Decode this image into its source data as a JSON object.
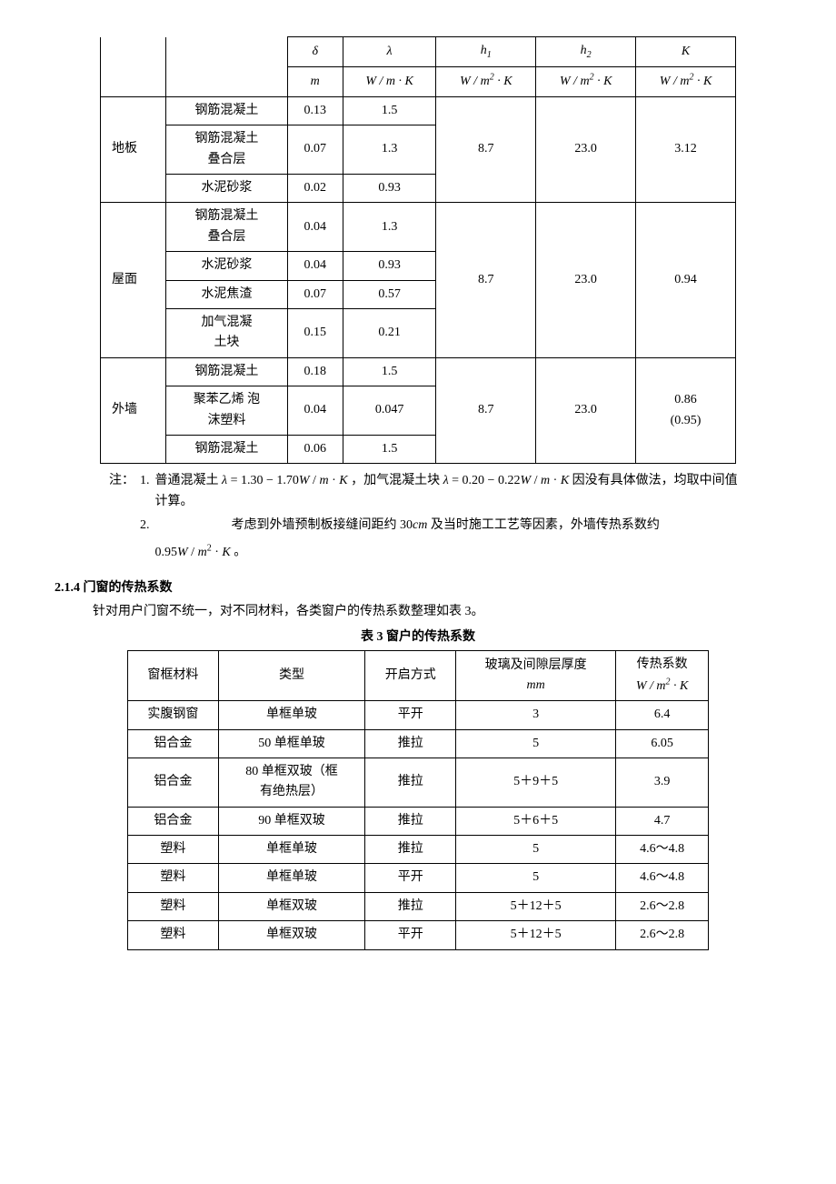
{
  "table1": {
    "head_symbols": [
      "δ",
      "λ",
      "h₁",
      "h₂",
      "K"
    ],
    "head_units": [
      "m",
      "W / m · K",
      "W / m² · K",
      "W / m² · K",
      "W / m² · K"
    ],
    "groups": [
      {
        "name": "地板",
        "rows": [
          {
            "mat": "钢筋混凝土",
            "d": "0.13",
            "l": "1.5"
          },
          {
            "mat": "钢筋混凝土\n叠合层",
            "d": "0.07",
            "l": "1.3"
          },
          {
            "mat": "水泥砂浆",
            "d": "0.02",
            "l": "0.93"
          }
        ],
        "h1": "8.7",
        "h2": "23.0",
        "K": "3.12"
      },
      {
        "name": "屋面",
        "rows": [
          {
            "mat": "钢筋混凝土\n叠合层",
            "d": "0.04",
            "l": "1.3"
          },
          {
            "mat": "水泥砂浆",
            "d": "0.04",
            "l": "0.93"
          },
          {
            "mat": "水泥焦渣",
            "d": "0.07",
            "l": "0.57"
          },
          {
            "mat": "加气混凝\n土块",
            "d": "0.15",
            "l": "0.21"
          }
        ],
        "h1": "8.7",
        "h2": "23.0",
        "K": "0.94"
      },
      {
        "name": "外墙",
        "rows": [
          {
            "mat": "钢筋混凝土",
            "d": "0.18",
            "l": "1.5"
          },
          {
            "mat": "聚苯乙烯 泡\n沫塑料",
            "d": "0.04",
            "l": "0.047"
          },
          {
            "mat": "钢筋混凝土",
            "d": "0.06",
            "l": "1.5"
          }
        ],
        "h1": "8.7",
        "h2": "23.0",
        "K": "0.86\n(0.95)"
      }
    ]
  },
  "notes": {
    "label": "注：",
    "n1_num": "1.",
    "n1_a": "普通混凝土 ",
    "n1_formula1": "λ = 1.30 − 1.70W / m · K",
    "n1_b": " ，加气混凝土块 ",
    "n1_formula2": "λ = 0.20 − 0.22W / m · K",
    "n1_c": " 因没有具体做法，均取中间值计算。",
    "n2_num": "2.",
    "n2_a": "考虑到外墙预制板接缝间距约 ",
    "n2_formula1": "30cm",
    "n2_b": " 及当时施工工艺等因素，外墙传热系数约",
    "n2_formula2": "0.95W / m² · K",
    "n2_c": " 。"
  },
  "section": {
    "heading": "2.1.4 门窗的传热系数",
    "para": "针对用户门窗不统一，对不同材料，各类窗户的传热系数整理如表 3。",
    "caption": "表 3 窗户的传热系数"
  },
  "table2": {
    "headers": {
      "c1": "窗框材料",
      "c2": "类型",
      "c3": "开启方式",
      "c4_a": "玻璃及间隙层厚度",
      "c4_b": "mm",
      "c5_a": "传热系数",
      "c5_b": "W / m² · K"
    },
    "rows": [
      {
        "c1": "实腹钢窗",
        "c2": "单框单玻",
        "c3": "平开",
        "c4": "3",
        "c5": "6.4"
      },
      {
        "c1": "铝合金",
        "c2": "50 单框单玻",
        "c3": "推拉",
        "c4": "5",
        "c5": "6.05"
      },
      {
        "c1": "铝合金",
        "c2": "80 单框双玻（框\n有绝热层）",
        "c3": "推拉",
        "c4": "5＋9＋5",
        "c5": "3.9"
      },
      {
        "c1": "铝合金",
        "c2": "90 单框双玻",
        "c3": "推拉",
        "c4": "5＋6＋5",
        "c5": "4.7"
      },
      {
        "c1": "塑料",
        "c2": "单框单玻",
        "c3": "推拉",
        "c4": "5",
        "c5": "4.6～4.8"
      },
      {
        "c1": "塑料",
        "c2": "单框单玻",
        "c3": "平开",
        "c4": "5",
        "c5": "4.6～4.8"
      },
      {
        "c1": "塑料",
        "c2": "单框双玻",
        "c3": "推拉",
        "c4": "5＋12＋5",
        "c5": "2.6～2.8"
      },
      {
        "c1": "塑料",
        "c2": "单框双玻",
        "c3": "平开",
        "c4": "5＋12＋5",
        "c5": "2.6～2.8"
      }
    ]
  }
}
